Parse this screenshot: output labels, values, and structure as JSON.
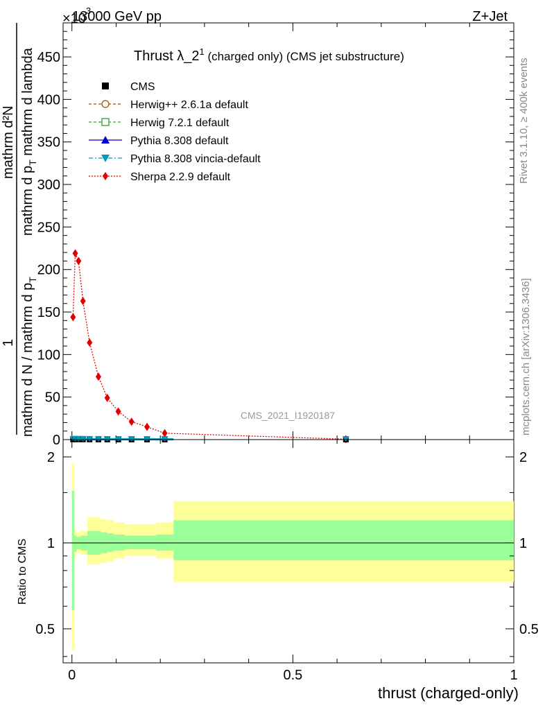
{
  "header": {
    "left": "13000 GeV pp",
    "right": "Z+Jet",
    "exponent": "×10",
    "exponent_power": "3"
  },
  "side_text": {
    "rivet": "Rivet 3.1.10, ≥ 400k events",
    "mcplots": "mcplots.cern.ch [arXiv:1306.3436]"
  },
  "main_title": {
    "main": "Thrust λ_2",
    "sup": "1",
    "rest": " (charged only) (CMS jet substructure)"
  },
  "analysis_label": "CMS_2021_I1920187",
  "ylabel_upper": {
    "numer": "mathrm d²N",
    "denom": "mathrm d p",
    "denom_sub": "T",
    "denom_rest": " mathrm d lambda"
  },
  "ylabel_main": {
    "one": "1",
    "frac": "mathrm d N / mathrm d p",
    "frac_sub": "T"
  },
  "ratio_ylabel": "Ratio to CMS",
  "xlabel": "thrust (charged-only)",
  "legend": [
    {
      "label": "CMS",
      "color": "#000000",
      "marker": "square-filled",
      "line": "none"
    },
    {
      "label": "Herwig++ 2.6.1a default",
      "color": "#a05000",
      "marker": "circle-open",
      "line": "dashed"
    },
    {
      "label": "Herwig 7.2.1 default",
      "color": "#2ca02c",
      "marker": "square-open",
      "line": "dashed"
    },
    {
      "label": "Pythia 8.308 default",
      "color": "#0000cc",
      "marker": "triangle-up",
      "line": "solid"
    },
    {
      "label": "Pythia 8.308 vincia-default",
      "color": "#0099bb",
      "marker": "triangle-down",
      "line": "dashdot"
    },
    {
      "label": "Sherpa 2.2.9 default",
      "color": "#e00000",
      "marker": "diamond",
      "line": "dotted"
    }
  ],
  "chart_data": [
    {
      "type": "line",
      "title": "Thrust λ_2^1 (charged only) (CMS jet substructure)",
      "xlim": [
        -0.02,
        1.0
      ],
      "ylim": [
        0,
        490
      ],
      "y_multiplier": "×10^3",
      "yticks": [
        0,
        50,
        100,
        150,
        200,
        250,
        300,
        350,
        400,
        450
      ],
      "xticks": [
        0,
        0.5,
        1
      ],
      "series": [
        {
          "name": "Sherpa 2.2.9 default",
          "x": [
            0.0025,
            0.0075,
            0.015,
            0.025,
            0.04,
            0.06,
            0.08,
            0.105,
            0.135,
            0.17,
            0.21,
            0.62
          ],
          "y": [
            144,
            219,
            210,
            163,
            114,
            74,
            49,
            33,
            21,
            15,
            7.5,
            0.5
          ]
        },
        {
          "name": "CMS",
          "x": [
            0.0025,
            0.0075,
            0.015,
            0.025,
            0.04,
            0.06,
            0.08,
            0.105,
            0.135,
            0.17,
            0.21,
            0.62
          ],
          "y": [
            0.15,
            0.22,
            0.21,
            0.16,
            0.11,
            0.07,
            0.05,
            0.03,
            0.02,
            0.015,
            0.008,
            0.0005
          ]
        }
      ]
    },
    {
      "type": "area",
      "ylabel": "Ratio to CMS",
      "xlabel": "thrust (charged-only)",
      "xlim": [
        -0.02,
        1.0
      ],
      "ylim": [
        0.38,
        2.3
      ],
      "log_y": true,
      "yticks": [
        0.5,
        1,
        2
      ],
      "xticks": [
        0,
        0.5,
        1
      ],
      "bin_edges": [
        0,
        0.005,
        0.01,
        0.02,
        0.035,
        0.05,
        0.065,
        0.08,
        0.095,
        0.12,
        0.15,
        0.19,
        0.23,
        1.0
      ],
      "series": [
        {
          "name": "stat+syst (outer)",
          "lo": [
            0.42,
            0.88,
            0.92,
            0.91,
            0.84,
            0.84,
            0.85,
            0.86,
            0.88,
            0.9,
            0.9,
            0.88,
            0.73
          ],
          "hi": [
            1.9,
            1.12,
            1.09,
            1.1,
            1.23,
            1.23,
            1.21,
            1.2,
            1.18,
            1.16,
            1.16,
            1.18,
            1.4
          ]
        },
        {
          "name": "stat (inner)",
          "lo": [
            0.58,
            0.93,
            0.95,
            0.94,
            0.91,
            0.91,
            0.92,
            0.93,
            0.94,
            0.95,
            0.95,
            0.94,
            0.87
          ],
          "hi": [
            1.52,
            1.06,
            1.05,
            1.06,
            1.1,
            1.1,
            1.09,
            1.08,
            1.07,
            1.06,
            1.06,
            1.07,
            1.2
          ]
        }
      ]
    }
  ]
}
